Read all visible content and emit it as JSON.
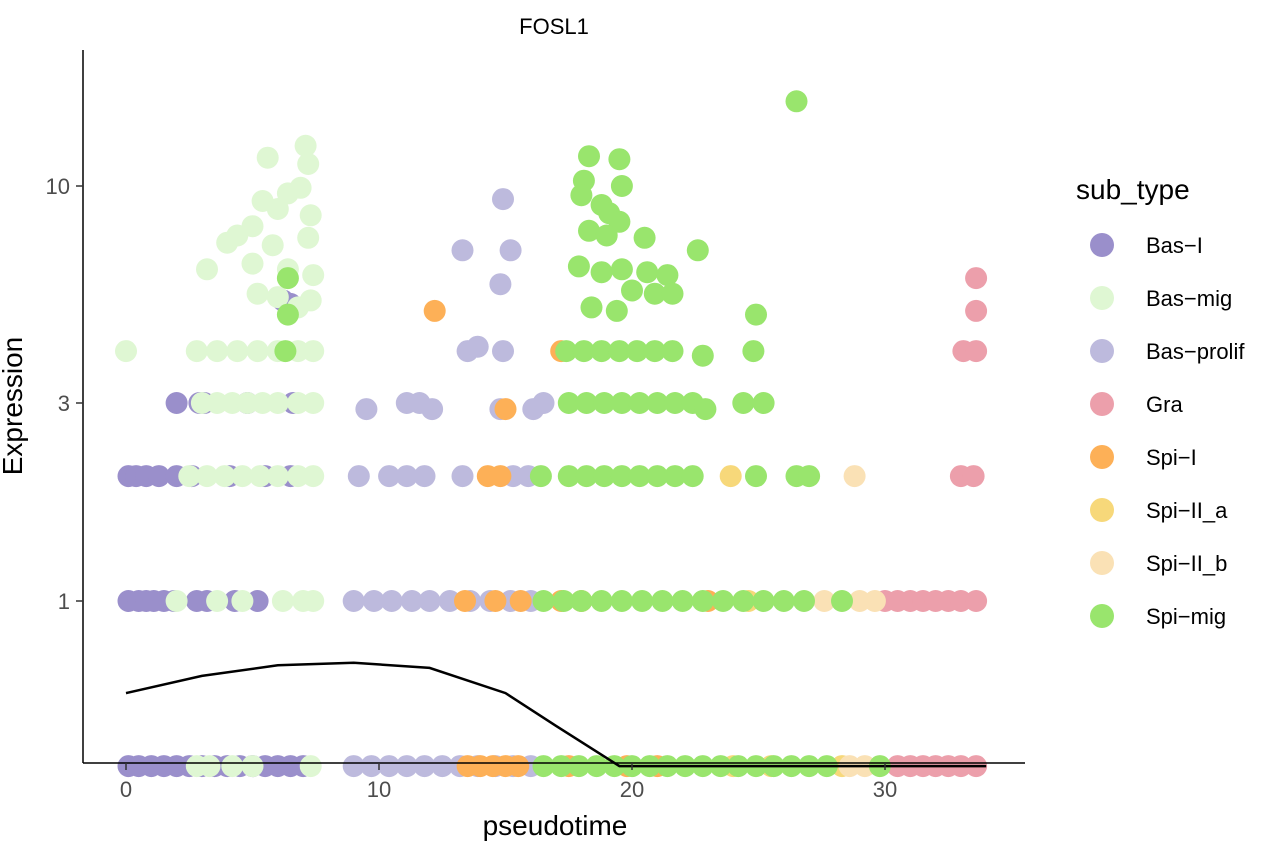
{
  "chart_data": {
    "type": "scatter",
    "title": "FOSL1",
    "xlabel": "pseudotime",
    "ylabel": "Expression",
    "x_ticks": [
      0,
      10,
      20,
      30
    ],
    "x_tick_labels": [
      "0",
      "10",
      "20",
      "30"
    ],
    "y_ticks": [
      1,
      3,
      10
    ],
    "y_tick_labels": [
      "1",
      "3",
      "10"
    ],
    "y_scale": "log",
    "xlim": [
      -1.5,
      35.5
    ],
    "ylim": [
      0.25,
      20
    ],
    "legend": {
      "title": "sub_type",
      "placement": "right",
      "entries": [
        {
          "label": "Bas−I",
          "color": "#9a8fcb"
        },
        {
          "label": "Bas−mig",
          "color": "#dff7d3"
        },
        {
          "label": "Bas−prolif",
          "color": "#bdbadd"
        },
        {
          "label": "Gra",
          "color": "#ec9fab"
        },
        {
          "label": "Spi−I",
          "color": "#fdb057"
        },
        {
          "label": "Spi−II_a",
          "color": "#f7d87a"
        },
        {
          "label": "Spi−II_b",
          "color": "#fae1b5"
        },
        {
          "label": "Spi−mig",
          "color": "#99e56d"
        }
      ]
    },
    "trend_line": {
      "color": "#000000",
      "x": [
        0,
        3,
        6,
        9,
        12,
        15,
        17,
        19.5,
        25,
        30,
        34
      ],
      "y": [
        0.6,
        0.66,
        0.7,
        0.71,
        0.69,
        0.6,
        0.5,
        0.4,
        0.4,
        0.4,
        0.4
      ]
    },
    "series": [
      {
        "name": "Bas−I",
        "points": [
          [
            0.1,
            1
          ],
          [
            0.5,
            1
          ],
          [
            0.8,
            1
          ],
          [
            1.1,
            1
          ],
          [
            1.5,
            1
          ],
          [
            1.9,
            1
          ],
          [
            2.8,
            1
          ],
          [
            3.2,
            1
          ],
          [
            4.3,
            1
          ],
          [
            5.2,
            1
          ],
          [
            0.1,
            2
          ],
          [
            0.4,
            2
          ],
          [
            0.8,
            2
          ],
          [
            1.3,
            2
          ],
          [
            2.0,
            2
          ],
          [
            2.6,
            2
          ],
          [
            4.1,
            2
          ],
          [
            5.5,
            2
          ],
          [
            6.5,
            2
          ],
          [
            2.0,
            3
          ],
          [
            2.9,
            3
          ],
          [
            3.1,
            3
          ],
          [
            4.8,
            3
          ],
          [
            6.6,
            3
          ],
          [
            6.2,
            5.3
          ],
          [
            6.5,
            5.2
          ],
          [
            0.1,
            0.4
          ],
          [
            0.5,
            0.4
          ],
          [
            1.0,
            0.4
          ],
          [
            1.5,
            0.4
          ],
          [
            2.0,
            0.4
          ],
          [
            2.5,
            0.4
          ],
          [
            3.0,
            0.4
          ],
          [
            3.5,
            0.4
          ],
          [
            4.0,
            0.4
          ],
          [
            4.5,
            0.4
          ],
          [
            5.0,
            0.4
          ],
          [
            5.5,
            0.4
          ],
          [
            6.0,
            0.4
          ],
          [
            6.5,
            0.4
          ],
          [
            7.0,
            0.4
          ]
        ]
      },
      {
        "name": "Bas−mig",
        "points": [
          [
            0.0,
            4.0
          ],
          [
            3.2,
            6.3
          ],
          [
            4.0,
            7.3
          ],
          [
            4.4,
            7.6
          ],
          [
            5.0,
            8.0
          ],
          [
            5.4,
            9.2
          ],
          [
            5.6,
            11.7
          ],
          [
            6.0,
            8.8
          ],
          [
            6.4,
            9.6
          ],
          [
            6.9,
            9.9
          ],
          [
            7.1,
            12.5
          ],
          [
            7.2,
            11.3
          ],
          [
            7.3,
            8.5
          ],
          [
            5.0,
            6.5
          ],
          [
            5.8,
            7.2
          ],
          [
            6.4,
            6.3
          ],
          [
            7.2,
            7.5
          ],
          [
            7.4,
            6.1
          ],
          [
            5.2,
            5.5
          ],
          [
            6.0,
            5.4
          ],
          [
            6.8,
            5.1
          ],
          [
            7.3,
            5.3
          ],
          [
            2.8,
            4.0
          ],
          [
            3.6,
            4.0
          ],
          [
            4.4,
            4.0
          ],
          [
            5.2,
            4.0
          ],
          [
            6.0,
            4.0
          ],
          [
            6.8,
            4.0
          ],
          [
            7.4,
            4.0
          ],
          [
            3.0,
            3
          ],
          [
            3.6,
            3
          ],
          [
            4.2,
            3
          ],
          [
            4.8,
            3
          ],
          [
            5.4,
            3
          ],
          [
            6.0,
            3
          ],
          [
            6.8,
            3
          ],
          [
            7.4,
            3
          ],
          [
            2.5,
            2
          ],
          [
            3.2,
            2
          ],
          [
            3.9,
            2
          ],
          [
            4.6,
            2
          ],
          [
            5.3,
            2
          ],
          [
            6.0,
            2
          ],
          [
            6.8,
            2
          ],
          [
            7.4,
            2
          ],
          [
            2.0,
            1
          ],
          [
            3.6,
            1
          ],
          [
            4.6,
            1
          ],
          [
            6.2,
            1
          ],
          [
            7.0,
            1
          ],
          [
            7.4,
            1
          ],
          [
            2.8,
            0.4
          ],
          [
            3.3,
            0.4
          ],
          [
            4.2,
            0.4
          ],
          [
            5.0,
            0.4
          ],
          [
            7.3,
            0.4
          ]
        ]
      },
      {
        "name": "Bas−prolif",
        "points": [
          [
            14.9,
            9.3
          ],
          [
            13.3,
            7.0
          ],
          [
            15.2,
            7.0
          ],
          [
            14.8,
            5.8
          ],
          [
            13.5,
            4.0
          ],
          [
            13.9,
            4.1
          ],
          [
            14.9,
            4.0
          ],
          [
            9.5,
            2.9
          ],
          [
            11.1,
            3
          ],
          [
            11.6,
            3
          ],
          [
            12.1,
            2.9
          ],
          [
            14.8,
            2.9
          ],
          [
            16.1,
            2.9
          ],
          [
            16.5,
            3
          ],
          [
            9.2,
            2
          ],
          [
            10.4,
            2
          ],
          [
            11.1,
            2
          ],
          [
            11.8,
            2
          ],
          [
            13.3,
            2
          ],
          [
            15.3,
            2
          ],
          [
            15.9,
            2
          ],
          [
            9.0,
            1
          ],
          [
            9.8,
            1
          ],
          [
            10.5,
            1
          ],
          [
            11.3,
            1
          ],
          [
            12.0,
            1
          ],
          [
            12.8,
            1
          ],
          [
            13.6,
            1
          ],
          [
            14.4,
            1
          ],
          [
            15.2,
            1
          ],
          [
            16.0,
            1
          ],
          [
            9.0,
            0.4
          ],
          [
            9.7,
            0.4
          ],
          [
            10.4,
            0.4
          ],
          [
            11.1,
            0.4
          ],
          [
            11.8,
            0.4
          ],
          [
            12.5,
            0.4
          ],
          [
            13.2,
            0.4
          ],
          [
            13.9,
            0.4
          ],
          [
            14.6,
            0.4
          ],
          [
            15.3,
            0.4
          ],
          [
            16.0,
            0.4
          ]
        ]
      },
      {
        "name": "Gra",
        "points": [
          [
            33.6,
            6.0
          ],
          [
            33.6,
            5.0
          ],
          [
            33.1,
            4.0
          ],
          [
            33.6,
            4.0
          ],
          [
            33.0,
            2
          ],
          [
            33.5,
            2
          ],
          [
            30.0,
            1
          ],
          [
            30.5,
            1
          ],
          [
            31.0,
            1
          ],
          [
            31.5,
            1
          ],
          [
            32.0,
            1
          ],
          [
            32.5,
            1
          ],
          [
            33.0,
            1
          ],
          [
            33.6,
            1
          ],
          [
            30.5,
            0.4
          ],
          [
            31.0,
            0.4
          ],
          [
            31.5,
            0.4
          ],
          [
            32.0,
            0.4
          ],
          [
            32.5,
            0.4
          ],
          [
            33.0,
            0.4
          ],
          [
            33.6,
            0.4
          ]
        ]
      },
      {
        "name": "Spi−I",
        "points": [
          [
            12.2,
            5.0
          ],
          [
            17.2,
            4.0
          ],
          [
            15.0,
            2.9
          ],
          [
            14.3,
            2
          ],
          [
            14.8,
            2
          ],
          [
            13.4,
            1
          ],
          [
            14.6,
            1
          ],
          [
            15.6,
            1
          ],
          [
            17.2,
            1
          ],
          [
            18.0,
            1
          ],
          [
            23.0,
            1
          ],
          [
            13.5,
            0.4
          ],
          [
            14.0,
            0.4
          ],
          [
            14.5,
            0.4
          ],
          [
            15.0,
            0.4
          ],
          [
            15.5,
            0.4
          ],
          [
            17.5,
            0.4
          ],
          [
            19.8,
            0.4
          ],
          [
            21.0,
            0.4
          ]
        ]
      },
      {
        "name": "Spi−II_a",
        "points": [
          [
            23.9,
            2
          ],
          [
            24.6,
            1
          ],
          [
            24.0,
            0.4
          ],
          [
            25.5,
            0.4
          ],
          [
            28.3,
            0.4
          ]
        ]
      },
      {
        "name": "Spi−II_b",
        "points": [
          [
            28.8,
            2
          ],
          [
            27.6,
            1
          ],
          [
            29.6,
            1
          ],
          [
            29.0,
            1
          ],
          [
            28.6,
            0.4
          ],
          [
            29.2,
            0.4
          ]
        ]
      },
      {
        "name": "Spi−mig",
        "points": [
          [
            26.5,
            16.0
          ],
          [
            18.3,
            11.8
          ],
          [
            19.5,
            11.6
          ],
          [
            18.1,
            10.3
          ],
          [
            19.6,
            10.0
          ],
          [
            18.0,
            9.5
          ],
          [
            18.8,
            9.0
          ],
          [
            19.1,
            8.6
          ],
          [
            19.5,
            8.2
          ],
          [
            18.3,
            7.8
          ],
          [
            19.0,
            7.6
          ],
          [
            20.5,
            7.5
          ],
          [
            22.6,
            7.0
          ],
          [
            17.9,
            6.4
          ],
          [
            18.8,
            6.2
          ],
          [
            19.6,
            6.3
          ],
          [
            20.6,
            6.2
          ],
          [
            21.4,
            6.1
          ],
          [
            20.0,
            5.6
          ],
          [
            20.9,
            5.5
          ],
          [
            21.6,
            5.5
          ],
          [
            18.4,
            5.1
          ],
          [
            19.4,
            5.0
          ],
          [
            24.9,
            4.9
          ],
          [
            6.4,
            6.0
          ],
          [
            6.4,
            4.9
          ],
          [
            6.3,
            4.0
          ],
          [
            17.4,
            4.0
          ],
          [
            18.1,
            4.0
          ],
          [
            18.8,
            4.0
          ],
          [
            19.5,
            4.0
          ],
          [
            20.2,
            4.0
          ],
          [
            20.9,
            4.0
          ],
          [
            21.6,
            4.0
          ],
          [
            22.8,
            3.9
          ],
          [
            24.8,
            4.0
          ],
          [
            17.5,
            3
          ],
          [
            18.2,
            3
          ],
          [
            18.9,
            3
          ],
          [
            19.6,
            3
          ],
          [
            20.3,
            3
          ],
          [
            21.0,
            3
          ],
          [
            21.7,
            3
          ],
          [
            22.4,
            3
          ],
          [
            22.9,
            2.9
          ],
          [
            24.4,
            3
          ],
          [
            25.2,
            3
          ],
          [
            16.4,
            2
          ],
          [
            17.5,
            2
          ],
          [
            18.2,
            2
          ],
          [
            18.9,
            2
          ],
          [
            19.6,
            2
          ],
          [
            20.3,
            2
          ],
          [
            21.0,
            2
          ],
          [
            21.7,
            2
          ],
          [
            22.4,
            2
          ],
          [
            24.9,
            2
          ],
          [
            26.5,
            2
          ],
          [
            27.0,
            2
          ],
          [
            16.5,
            1
          ],
          [
            17.3,
            1
          ],
          [
            18.0,
            1
          ],
          [
            18.8,
            1
          ],
          [
            19.6,
            1
          ],
          [
            20.4,
            1
          ],
          [
            21.2,
            1
          ],
          [
            22.0,
            1
          ],
          [
            22.8,
            1
          ],
          [
            23.6,
            1
          ],
          [
            24.4,
            1
          ],
          [
            25.2,
            1
          ],
          [
            26.0,
            1
          ],
          [
            26.8,
            1
          ],
          [
            28.3,
            1
          ],
          [
            16.5,
            0.4
          ],
          [
            17.2,
            0.4
          ],
          [
            17.9,
            0.4
          ],
          [
            18.6,
            0.4
          ],
          [
            19.3,
            0.4
          ],
          [
            20.0,
            0.4
          ],
          [
            20.7,
            0.4
          ],
          [
            21.4,
            0.4
          ],
          [
            22.1,
            0.4
          ],
          [
            22.8,
            0.4
          ],
          [
            23.5,
            0.4
          ],
          [
            24.2,
            0.4
          ],
          [
            24.9,
            0.4
          ],
          [
            25.6,
            0.4
          ],
          [
            26.3,
            0.4
          ],
          [
            27.0,
            0.4
          ],
          [
            27.7,
            0.4
          ],
          [
            29.8,
            0.4
          ]
        ]
      }
    ]
  }
}
